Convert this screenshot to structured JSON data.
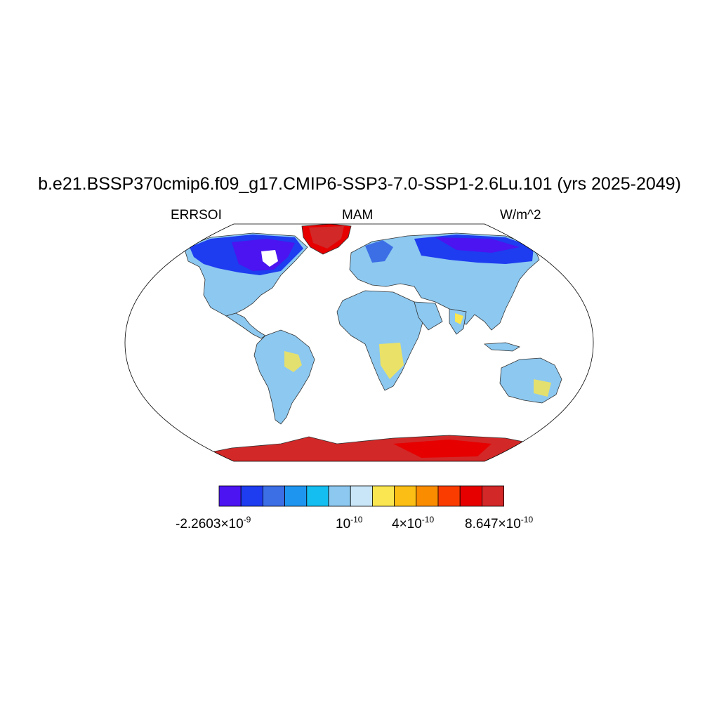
{
  "title": "b.e21.BSSP370cmip6.f09_g17.CMIP6-SSP3-7.0-SSP1-2.6Lu.101 (yrs 2025-2049)",
  "subtitle_left": "ERRSOI",
  "subtitle_center": "MAM",
  "subtitle_right": "W/m^2",
  "colorbar": {
    "colors": [
      "#4b14f0",
      "#1e3cf0",
      "#3c6ee6",
      "#1e96f0",
      "#14bef0",
      "#8cc8f0",
      "#c8e6f8",
      "#fae650",
      "#fabe14",
      "#fa8c00",
      "#fa3c00",
      "#e60000",
      "#d22828"
    ],
    "labels": [
      {
        "mantissa": "-2.2603×10",
        "exponent": "-9"
      },
      {
        "mantissa": "10",
        "exponent": "-10"
      },
      {
        "mantissa": "4×10",
        "exponent": "-10"
      },
      {
        "mantissa": "8.647×10",
        "exponent": "-10"
      }
    ]
  },
  "map": {
    "projection": "robinson",
    "ocean_color": "#ffffff",
    "coastline_color": "#333333"
  }
}
